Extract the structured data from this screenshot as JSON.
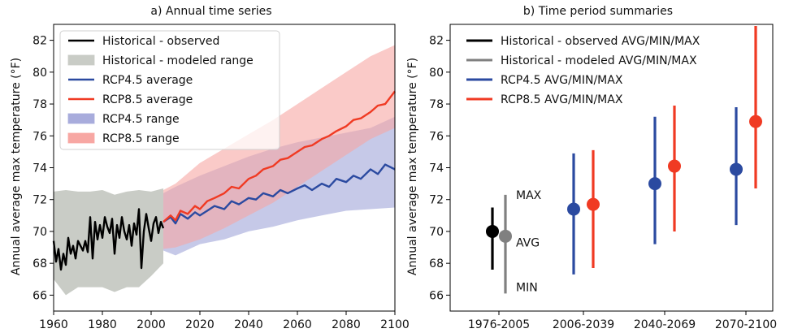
{
  "chart_data": [
    {
      "type": "line",
      "title": "a) Annual time series",
      "xlabel": "",
      "ylabel": "Annual average max temperature (°F)",
      "xlim": [
        1960,
        2100
      ],
      "ylim": [
        65,
        83
      ],
      "xticks": [
        1960,
        1980,
        2000,
        2020,
        2040,
        2060,
        2080,
        2100
      ],
      "yticks": [
        66,
        68,
        70,
        72,
        74,
        76,
        78,
        80,
        82
      ],
      "grid": false,
      "legend_position": "top-left",
      "legend": [
        {
          "label": "Historical - observed",
          "kind": "line",
          "color": "#000000"
        },
        {
          "label": "Historical - modeled range",
          "kind": "patch",
          "color": "#c9ccc6"
        },
        {
          "label": "RCP4.5 average",
          "kind": "line",
          "color": "#2b4aa0"
        },
        {
          "label": "RCP8.5 average",
          "kind": "line",
          "color": "#f03a23"
        },
        {
          "label": "RCP4.5 range",
          "kind": "patch",
          "color": "#a8acdc"
        },
        {
          "label": "RCP8.5 range",
          "kind": "patch",
          "color": "#f7a7a3"
        }
      ],
      "series": [
        {
          "name": "Historical - observed",
          "color": "#000000",
          "x": [
            1960,
            1961,
            1962,
            1963,
            1964,
            1965,
            1966,
            1967,
            1968,
            1969,
            1970,
            1971,
            1972,
            1973,
            1974,
            1975,
            1976,
            1977,
            1978,
            1979,
            1980,
            1981,
            1982,
            1983,
            1984,
            1985,
            1986,
            1987,
            1988,
            1989,
            1990,
            1991,
            1992,
            1993,
            1994,
            1995,
            1996,
            1997,
            1998,
            1999,
            2000,
            2001,
            2002,
            2003,
            2004,
            2005
          ],
          "y": [
            69.4,
            68.1,
            68.9,
            67.6,
            68.6,
            67.9,
            69.6,
            68.6,
            69.1,
            68.3,
            69.4,
            69.1,
            68.8,
            69.4,
            68.7,
            70.9,
            68.3,
            70.6,
            69.5,
            70.4,
            69.6,
            70.9,
            70.3,
            69.9,
            70.8,
            68.6,
            70.4,
            69.6,
            70.9,
            70.0,
            69.5,
            70.4,
            69.1,
            70.5,
            69.8,
            71.4,
            67.7,
            70.0,
            71.1,
            70.2,
            69.4,
            70.5,
            70.9,
            69.9,
            70.6,
            70.2
          ]
        },
        {
          "name": "Historical - modeled range",
          "color": "#c9ccc6",
          "x": [
            1960,
            1965,
            1970,
            1975,
            1980,
            1985,
            1990,
            1995,
            2000,
            2005
          ],
          "lower": [
            67.0,
            66.0,
            66.5,
            66.5,
            66.5,
            66.2,
            66.5,
            66.5,
            67.2,
            68.0
          ],
          "upper": [
            72.5,
            72.6,
            72.5,
            72.5,
            72.6,
            72.3,
            72.5,
            72.6,
            72.5,
            72.7
          ]
        },
        {
          "name": "RCP4.5 range",
          "color": "#a8acdc",
          "x": [
            2005,
            2010,
            2020,
            2030,
            2040,
            2050,
            2060,
            2070,
            2080,
            2090,
            2100
          ],
          "lower": [
            68.8,
            68.5,
            69.2,
            69.5,
            70.0,
            70.3,
            70.7,
            71.0,
            71.3,
            71.4,
            71.5
          ],
          "upper": [
            72.4,
            72.8,
            73.5,
            74.1,
            74.7,
            75.2,
            75.6,
            75.9,
            76.2,
            76.5,
            77.2
          ]
        },
        {
          "name": "RCP8.5 range",
          "color": "#f7a7a3",
          "x": [
            2005,
            2010,
            2020,
            2030,
            2040,
            2050,
            2060,
            2070,
            2080,
            2090,
            2100
          ],
          "lower": [
            68.9,
            69.0,
            69.5,
            70.2,
            71.0,
            71.8,
            72.8,
            73.8,
            74.8,
            75.8,
            76.5
          ],
          "upper": [
            72.6,
            73.0,
            74.3,
            75.2,
            76.1,
            77.0,
            78.0,
            79.0,
            80.0,
            81.0,
            81.7
          ]
        },
        {
          "name": "RCP4.5 average",
          "color": "#2b4aa0",
          "x": [
            2005,
            2008,
            2010,
            2012,
            2015,
            2018,
            2020,
            2023,
            2026,
            2030,
            2033,
            2036,
            2040,
            2043,
            2046,
            2050,
            2053,
            2056,
            2060,
            2063,
            2066,
            2070,
            2073,
            2076,
            2080,
            2083,
            2086,
            2090,
            2093,
            2096,
            2100
          ],
          "y": [
            70.6,
            70.9,
            70.5,
            71.1,
            70.8,
            71.2,
            71.0,
            71.3,
            71.6,
            71.4,
            71.9,
            71.7,
            72.1,
            72.0,
            72.4,
            72.2,
            72.6,
            72.4,
            72.7,
            72.9,
            72.6,
            73.0,
            72.8,
            73.3,
            73.1,
            73.5,
            73.3,
            73.9,
            73.6,
            74.2,
            73.9
          ]
        },
        {
          "name": "RCP8.5 average",
          "color": "#f03a23",
          "x": [
            2005,
            2008,
            2010,
            2012,
            2015,
            2018,
            2020,
            2023,
            2026,
            2030,
            2033,
            2036,
            2040,
            2043,
            2046,
            2050,
            2053,
            2056,
            2060,
            2063,
            2066,
            2070,
            2073,
            2076,
            2080,
            2083,
            2086,
            2090,
            2093,
            2096,
            2100
          ],
          "y": [
            70.6,
            71.0,
            70.7,
            71.3,
            71.1,
            71.6,
            71.4,
            71.9,
            72.1,
            72.4,
            72.8,
            72.7,
            73.3,
            73.5,
            73.9,
            74.1,
            74.5,
            74.6,
            75.0,
            75.3,
            75.4,
            75.8,
            76.0,
            76.3,
            76.6,
            77.0,
            77.1,
            77.5,
            77.9,
            78.0,
            78.8
          ]
        }
      ]
    },
    {
      "type": "scatter",
      "title": "b) Time period summaries",
      "xlabel": "",
      "ylabel": "Annual average max temperature (°F)",
      "ylim": [
        65,
        83
      ],
      "yticks": [
        66,
        68,
        70,
        72,
        74,
        76,
        78,
        80,
        82
      ],
      "categories": [
        "1976-2005",
        "2006-2039",
        "2040-2069",
        "2070-2100"
      ],
      "grid": false,
      "legend_position": "top-left",
      "legend": [
        {
          "label": "Historical - observed AVG/MIN/MAX",
          "color": "#000000"
        },
        {
          "label": "Historical - modeled AVG/MIN/MAX",
          "color": "#808080"
        },
        {
          "label": "RCP4.5 AVG/MIN/MAX",
          "color": "#2b4aa0"
        },
        {
          "label": "RCP8.5 AVG/MIN/MAX",
          "color": "#f03a23"
        }
      ],
      "series": [
        {
          "name": "Historical - observed AVG/MIN/MAX",
          "color": "#000000",
          "points": [
            {
              "category": "1976-2005",
              "avg": 70.0,
              "min": 67.6,
              "max": 71.5
            }
          ]
        },
        {
          "name": "Historical - modeled AVG/MIN/MAX",
          "color": "#808080",
          "points": [
            {
              "category": "1976-2005",
              "avg": 69.7,
              "min": 66.1,
              "max": 72.3
            }
          ]
        },
        {
          "name": "RCP4.5 AVG/MIN/MAX",
          "color": "#2b4aa0",
          "points": [
            {
              "category": "2006-2039",
              "avg": 71.4,
              "min": 67.3,
              "max": 74.9
            },
            {
              "category": "2040-2069",
              "avg": 73.0,
              "min": 69.2,
              "max": 77.2
            },
            {
              "category": "2070-2100",
              "avg": 73.9,
              "min": 70.4,
              "max": 77.8
            }
          ]
        },
        {
          "name": "RCP8.5 AVG/MIN/MAX",
          "color": "#f03a23",
          "points": [
            {
              "category": "2006-2039",
              "avg": 71.7,
              "min": 67.7,
              "max": 75.1
            },
            {
              "category": "2040-2069",
              "avg": 74.1,
              "min": 70.0,
              "max": 77.9
            },
            {
              "category": "2070-2100",
              "avg": 76.9,
              "min": 72.7,
              "max": 82.9
            }
          ]
        }
      ],
      "annotations": [
        {
          "text": "MAX",
          "y": 72.3
        },
        {
          "text": "AVG",
          "y": 69.3
        },
        {
          "text": "MIN",
          "y": 66.5
        }
      ]
    }
  ]
}
